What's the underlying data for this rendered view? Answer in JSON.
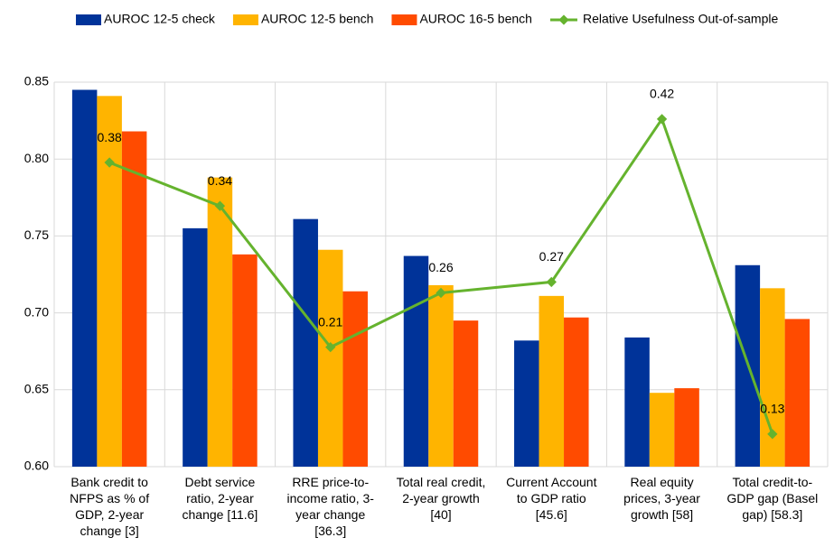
{
  "chart_data": {
    "type": "bar",
    "categories": [
      "Bank credit to\nNFPS as % of\nGDP, 2-year\nchange [3]",
      "Debt service\nratio, 2-year\nchange [11.6]",
      "RRE price-to-\nincome ratio, 3-\nyear change\n[36.3]",
      "Total real credit,\n2-year growth\n[40]",
      "Current Account\nto GDP ratio\n[45.6]",
      "Real equity\nprices, 3-year\ngrowth [58]",
      "Total credit-to-\nGDP gap (Basel\ngap) [58.3]"
    ],
    "series": [
      {
        "name": "AUROC 12-5 check",
        "color": "#003399",
        "values": [
          0.845,
          0.755,
          0.761,
          0.737,
          0.682,
          0.684,
          0.731
        ]
      },
      {
        "name": "AUROC 12-5 bench",
        "color": "#ffb400",
        "values": [
          0.841,
          0.788,
          0.741,
          0.718,
          0.711,
          0.648,
          0.716
        ]
      },
      {
        "name": "AUROC 16-5 bench",
        "color": "#ff4b00",
        "values": [
          0.818,
          0.738,
          0.714,
          0.695,
          0.697,
          0.651,
          0.696
        ]
      },
      {
        "name": "Relative Usefulness Out-of-sample",
        "color": "#65b32e",
        "type": "line",
        "axis": "y2",
        "values": [
          0.38,
          0.34,
          0.21,
          0.26,
          0.27,
          0.42,
          0.13
        ]
      }
    ],
    "ylim": [
      0.6,
      0.85
    ],
    "yticks": [
      {
        "value": 0.6,
        "label": "0.60"
      },
      {
        "value": 0.65,
        "label": "0.65"
      },
      {
        "value": 0.7,
        "label": "0.70"
      },
      {
        "value": 0.75,
        "label": "0.75"
      },
      {
        "value": 0.8,
        "label": "0.80"
      },
      {
        "value": 0.85,
        "label": "0.85"
      }
    ],
    "y2lim": [
      0.1,
      0.454
    ],
    "grid": true,
    "legend": "top"
  }
}
